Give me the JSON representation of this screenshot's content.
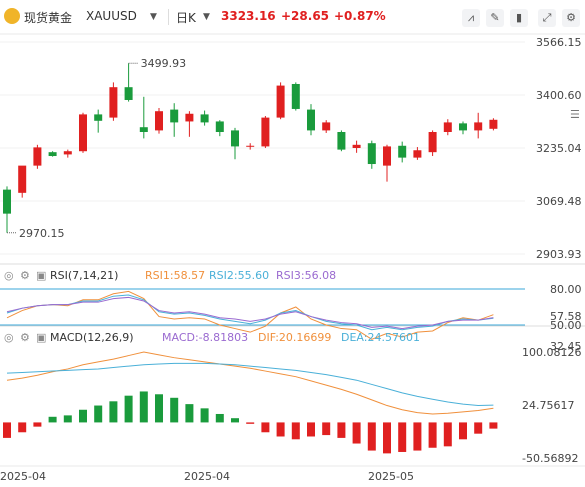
{
  "header": {
    "symbol_name": "现货黄金",
    "symbol_code": "XAUUSD",
    "period": "日K",
    "price": "3323.16",
    "change": "+28.65",
    "change_pct": "+0.87%",
    "icons": [
      "line-chart-icon",
      "draw-icon",
      "candle-style-icon",
      "fullscreen-icon",
      "settings-icon"
    ]
  },
  "colors": {
    "up": "#e02020",
    "down": "#1a9b3c",
    "rsi1": "#f0903c",
    "rsi2": "#4ab0d8",
    "rsi3": "#9a6ad0",
    "dif": "#f0903c",
    "dea": "#4ab0d8",
    "ref_line": "#3aa7d8"
  },
  "chart_data": [
    {
      "type": "candlestick",
      "y_ticks": [
        "3566.15",
        "3400.60",
        "3235.04",
        "3069.48",
        "2903.93"
      ],
      "ylim": [
        2903.93,
        3566.15
      ],
      "annotations": [
        {
          "label": "3499.93",
          "value": 3499.93
        },
        {
          "label": "2970.15",
          "value": 2970.15
        }
      ],
      "candles": [
        {
          "o": 3105,
          "h": 3115,
          "l": 2970.15,
          "c": 3030
        },
        {
          "o": 3095,
          "h": 3178,
          "l": 3080,
          "c": 3180
        },
        {
          "o": 3180,
          "h": 3245,
          "l": 3170,
          "c": 3237
        },
        {
          "o": 3222,
          "h": 3225,
          "l": 3208,
          "c": 3210
        },
        {
          "o": 3215,
          "h": 3230,
          "l": 3205,
          "c": 3225
        },
        {
          "o": 3225,
          "h": 3345,
          "l": 3220,
          "c": 3340
        },
        {
          "o": 3340,
          "h": 3355,
          "l": 3283,
          "c": 3320
        },
        {
          "o": 3330,
          "h": 3440,
          "l": 3320,
          "c": 3425
        },
        {
          "o": 3425,
          "h": 3499.93,
          "l": 3380,
          "c": 3385
        },
        {
          "o": 3300,
          "h": 3395,
          "l": 3265,
          "c": 3285
        },
        {
          "o": 3290,
          "h": 3360,
          "l": 3280,
          "c": 3350
        },
        {
          "o": 3355,
          "h": 3375,
          "l": 3270,
          "c": 3315
        },
        {
          "o": 3318,
          "h": 3350,
          "l": 3270,
          "c": 3342
        },
        {
          "o": 3340,
          "h": 3352,
          "l": 3305,
          "c": 3315
        },
        {
          "o": 3318,
          "h": 3322,
          "l": 3272,
          "c": 3285
        },
        {
          "o": 3290,
          "h": 3298,
          "l": 3200,
          "c": 3240
        },
        {
          "o": 3240,
          "h": 3250,
          "l": 3230,
          "c": 3242
        },
        {
          "o": 3240,
          "h": 3335,
          "l": 3235,
          "c": 3330
        },
        {
          "o": 3330,
          "h": 3440,
          "l": 3325,
          "c": 3430
        },
        {
          "o": 3435,
          "h": 3440,
          "l": 3352,
          "c": 3357
        },
        {
          "o": 3355,
          "h": 3372,
          "l": 3275,
          "c": 3290
        },
        {
          "o": 3290,
          "h": 3322,
          "l": 3282,
          "c": 3315
        },
        {
          "o": 3285,
          "h": 3290,
          "l": 3225,
          "c": 3230
        },
        {
          "o": 3235,
          "h": 3258,
          "l": 3220,
          "c": 3245
        },
        {
          "o": 3250,
          "h": 3258,
          "l": 3170,
          "c": 3185
        },
        {
          "o": 3180,
          "h": 3245,
          "l": 3130,
          "c": 3240
        },
        {
          "o": 3242,
          "h": 3255,
          "l": 3190,
          "c": 3205
        },
        {
          "o": 3205,
          "h": 3238,
          "l": 3198,
          "c": 3228
        },
        {
          "o": 3222,
          "h": 3290,
          "l": 3210,
          "c": 3285
        },
        {
          "o": 3285,
          "h": 3325,
          "l": 3275,
          "c": 3315
        },
        {
          "o": 3312,
          "h": 3318,
          "l": 3278,
          "c": 3290
        },
        {
          "o": 3290,
          "h": 3345,
          "l": 3265,
          "c": 3315
        },
        {
          "o": 3295,
          "h": 3328,
          "l": 3290,
          "c": 3323.16
        }
      ]
    },
    {
      "type": "line",
      "name": "RSI",
      "label": "RSI(7,14,21)",
      "legend": [
        {
          "name": "RSI1",
          "value_label": "RSI1:58.57",
          "color_key": "rsi1"
        },
        {
          "name": "RSI2",
          "value_label": "RSI2:55.60",
          "color_key": "rsi2"
        },
        {
          "name": "RSI3",
          "value_label": "RSI3:56.08",
          "color_key": "rsi3"
        }
      ],
      "y_ticks": [
        "80.00",
        "57.58",
        "50.00",
        "32.45"
      ],
      "ylim": [
        32.45,
        80.0
      ],
      "ref_lines": [
        80,
        50
      ],
      "series": [
        {
          "name": "RSI1",
          "values": [
            56,
            62,
            66,
            67,
            66,
            71,
            71,
            76,
            78,
            72,
            57,
            55,
            56,
            55,
            50,
            47,
            44,
            49,
            60,
            65,
            55,
            50,
            47,
            46,
            38,
            43,
            40,
            44,
            45,
            52,
            56,
            54,
            58.57
          ]
        },
        {
          "name": "RSI2",
          "values": [
            60,
            64,
            66,
            67,
            67,
            70,
            70,
            74,
            75,
            71,
            61,
            59,
            60,
            58,
            55,
            53,
            51,
            54,
            60,
            62,
            57,
            53,
            51,
            50,
            46,
            48,
            46,
            48,
            49,
            53,
            55,
            54,
            55.6
          ]
        },
        {
          "name": "RSI3",
          "values": [
            61,
            64,
            66,
            67,
            67,
            69,
            69,
            72,
            73,
            70,
            62,
            60,
            61,
            59,
            56,
            55,
            53,
            55,
            59,
            61,
            57,
            54,
            52,
            51,
            48,
            49,
            47,
            49,
            50,
            53,
            54,
            54,
            56.08
          ]
        }
      ]
    },
    {
      "type": "bar+line",
      "name": "MACD",
      "label": "MACD(12,26,9)",
      "legend": [
        {
          "name": "MACD",
          "value_label": "MACD:-8.81803",
          "color_key": "up"
        },
        {
          "name": "DIF",
          "value_label": "DIF:20.16699",
          "color_key": "dif"
        },
        {
          "name": "DEA",
          "value_label": "DEA:24.57601",
          "color_key": "dea"
        }
      ],
      "y_ticks": [
        "100.08126",
        "24.75617",
        "-50.56892"
      ],
      "ylim": [
        -50.56892,
        100.08126
      ],
      "macd": [
        -22,
        -14,
        -6,
        8,
        10,
        18,
        24,
        30,
        38,
        44,
        40,
        35,
        26,
        20,
        12,
        6,
        -2,
        -14,
        -20,
        -24,
        -20,
        -18,
        -22,
        -30,
        -40,
        -44,
        -42,
        -40,
        -36,
        -34,
        -24,
        -16,
        -8.82
      ],
      "dif": [
        60,
        63,
        67,
        72,
        76,
        82,
        86,
        90,
        95,
        100,
        96,
        92,
        89,
        86,
        83,
        80,
        77,
        73,
        69,
        65,
        59,
        53,
        47,
        40,
        32,
        24,
        18,
        14,
        12,
        13,
        15,
        17,
        20.17
      ],
      "dea": [
        70,
        71,
        72,
        73,
        74,
        75,
        76,
        78,
        80,
        82,
        83,
        84,
        84,
        84,
        83,
        82,
        80,
        78,
        76,
        74,
        71,
        68,
        64,
        60,
        54,
        48,
        42,
        37,
        33,
        29,
        26,
        24,
        24.58
      ]
    }
  ],
  "x_labels": [
    "2025-04",
    "2025-04",
    "2025-05"
  ]
}
